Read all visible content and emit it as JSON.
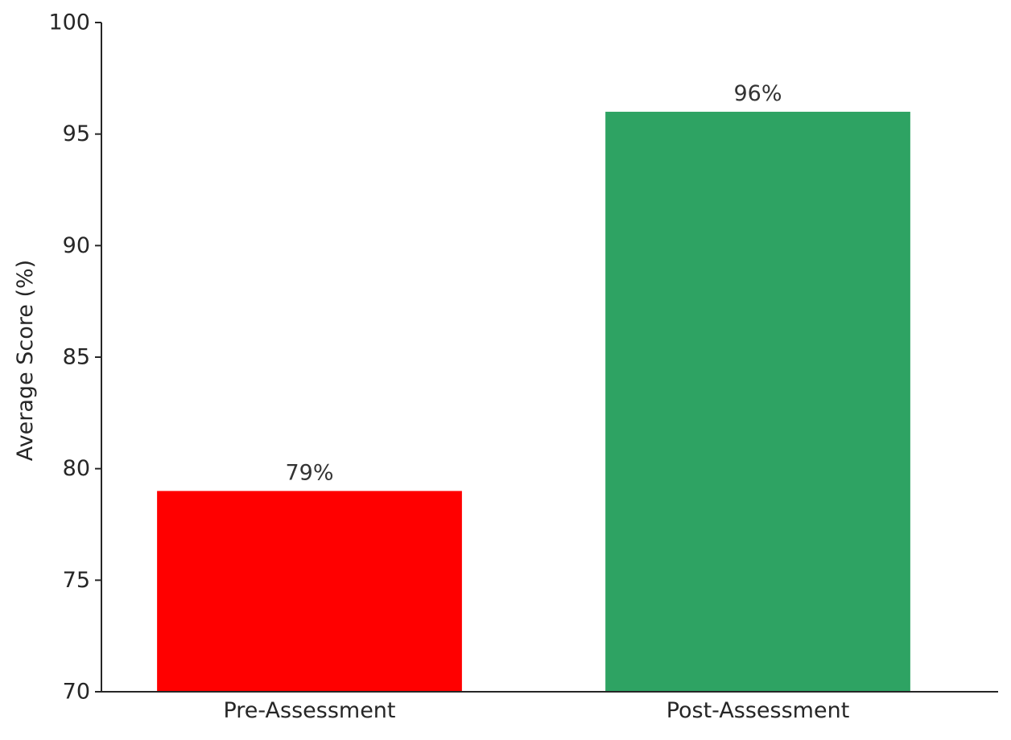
{
  "chart_data": {
    "type": "bar",
    "title": "",
    "xlabel": "",
    "ylabel": "Average Score (%)",
    "categories": [
      "Pre-Assessment",
      "Post-Assessment"
    ],
    "values": [
      79,
      96
    ],
    "data_labels": [
      "79%",
      "96%"
    ],
    "colors": [
      "#ff0000",
      "#2ea363"
    ],
    "ylim": [
      70,
      100
    ],
    "yticks": [
      70,
      75,
      80,
      85,
      90,
      95,
      100
    ],
    "grid": false,
    "legend": "none",
    "axis_color": "#262626"
  }
}
